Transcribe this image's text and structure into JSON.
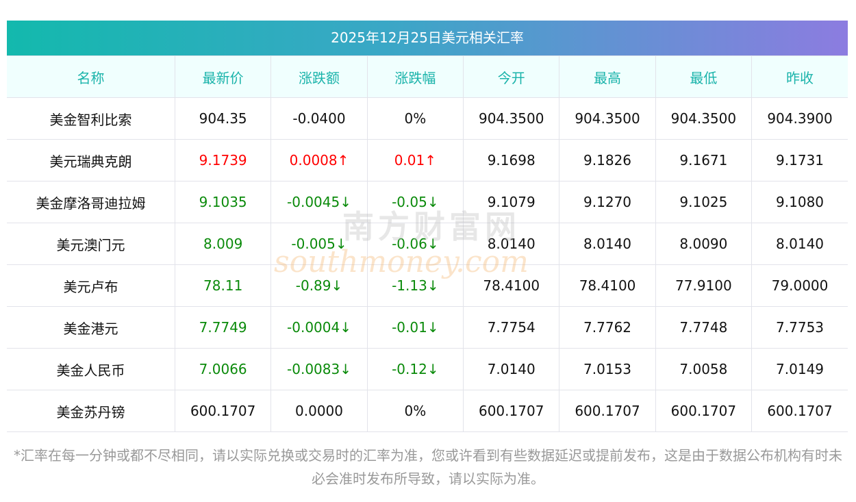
{
  "title": "2025年12月25日美元相关汇率",
  "columns": [
    "名称",
    "最新价",
    "涨跌额",
    "涨跌幅",
    "今开",
    "最高",
    "最低",
    "昨收"
  ],
  "rows": [
    {
      "name": "美金智利比索",
      "latest": "904.35",
      "change": "-0.0400",
      "pct": "0%",
      "open": "904.3500",
      "high": "904.3500",
      "low": "904.3500",
      "prev": "904.3900",
      "trend": "flat"
    },
    {
      "name": "美元瑞典克朗",
      "latest": "9.1739",
      "change": "0.0008↑",
      "pct": "0.01↑",
      "open": "9.1698",
      "high": "9.1826",
      "low": "9.1671",
      "prev": "9.1731",
      "trend": "up"
    },
    {
      "name": "美金摩洛哥迪拉姆",
      "latest": "9.1035",
      "change": "-0.0045↓",
      "pct": "-0.05↓",
      "open": "9.1079",
      "high": "9.1270",
      "low": "9.1025",
      "prev": "9.1080",
      "trend": "down"
    },
    {
      "name": "美元澳门元",
      "latest": "8.009",
      "change": "-0.005↓",
      "pct": "-0.06↓",
      "open": "8.0140",
      "high": "8.0140",
      "low": "8.0090",
      "prev": "8.0140",
      "trend": "down"
    },
    {
      "name": "美元卢布",
      "latest": "78.11",
      "change": "-0.89↓",
      "pct": "-1.13↓",
      "open": "78.4100",
      "high": "78.4100",
      "low": "77.9100",
      "prev": "79.0000",
      "trend": "down"
    },
    {
      "name": "美金港元",
      "latest": "7.7749",
      "change": "-0.0004↓",
      "pct": "-0.01↓",
      "open": "7.7754",
      "high": "7.7762",
      "low": "7.7748",
      "prev": "7.7753",
      "trend": "down"
    },
    {
      "name": "美金人民币",
      "latest": "7.0066",
      "change": "-0.0083↓",
      "pct": "-0.12↓",
      "open": "7.0140",
      "high": "7.0153",
      "low": "7.0058",
      "prev": "7.0149",
      "trend": "down"
    },
    {
      "name": "美金苏丹镑",
      "latest": "600.1707",
      "change": "0.0000",
      "pct": "0%",
      "open": "600.1707",
      "high": "600.1707",
      "low": "600.1707",
      "prev": "600.1707",
      "trend": "flat"
    }
  ],
  "note": "*汇率在每一分钟或都不尽相同，请以实际兑换或交易时的汇率为准，您或许看到有些数据延迟或提前发布，这是由于数据公布机构有时未必会准时发布所导致，请以实际为准。",
  "watermark": {
    "cn": "南方财富网",
    "en": "southmoney.com"
  },
  "colors": {
    "up": "#ff0000",
    "down": "#0a8a0a",
    "header": "#1ab3aa"
  }
}
